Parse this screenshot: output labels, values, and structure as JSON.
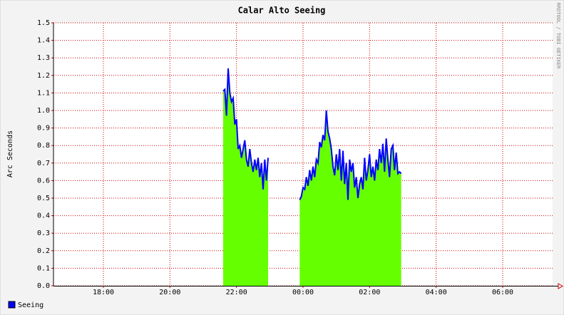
{
  "chart_data": {
    "type": "area",
    "title": "Calar Alto Seeing",
    "y_label": "Arc Seconds",
    "side_note": "RRDTOOL / TOBI OETIKER",
    "xlim": [
      16.5,
      31.5
    ],
    "xticks": [
      {
        "value": 18,
        "label": "18:00"
      },
      {
        "value": 20,
        "label": "20:00"
      },
      {
        "value": 22,
        "label": "22:00"
      },
      {
        "value": 24,
        "label": "00:00"
      },
      {
        "value": 26,
        "label": "02:00"
      },
      {
        "value": 28,
        "label": "04:00"
      },
      {
        "value": 30,
        "label": "06:00"
      }
    ],
    "ylim": [
      0,
      1.5
    ],
    "yticks": [
      {
        "value": 0,
        "label": "0.0"
      },
      0.1,
      0.2,
      0.3,
      0.4,
      0.5,
      0.6,
      0.7,
      0.8,
      0.9,
      {
        "value": 1,
        "label": "1.0"
      },
      1.1,
      1.2,
      1.3,
      1.4,
      1.5
    ],
    "grid": true,
    "series": [
      {
        "name": "Seeing",
        "color": "#0000ff",
        "fill": "#66ff00",
        "x": [
          21.6,
          21.65,
          21.7,
          21.75,
          21.8,
          21.85,
          21.9,
          21.95,
          22.0,
          22.05,
          22.1,
          22.15,
          22.2,
          22.25,
          22.3,
          22.35,
          22.4,
          22.45,
          22.5,
          22.55,
          22.6,
          22.65,
          22.7,
          22.75,
          22.8,
          22.85,
          22.9,
          22.95,
          23.4,
          23.9,
          23.95,
          24.0,
          24.05,
          24.1,
          24.15,
          24.2,
          24.25,
          24.3,
          24.35,
          24.4,
          24.45,
          24.5,
          24.55,
          24.6,
          24.65,
          24.7,
          24.75,
          24.8,
          24.85,
          24.9,
          24.95,
          25.0,
          25.05,
          25.1,
          25.15,
          25.2,
          25.25,
          25.3,
          25.35,
          25.4,
          25.45,
          25.5,
          25.55,
          25.6,
          25.65,
          25.7,
          25.75,
          25.8,
          25.85,
          25.9,
          25.95,
          26.0,
          26.05,
          26.1,
          26.15,
          26.2,
          26.25,
          26.3,
          26.35,
          26.4,
          26.45,
          26.5,
          26.55,
          26.6,
          26.65,
          26.7,
          26.75,
          26.8,
          26.85,
          26.9,
          26.95
        ],
        "values": [
          1.11,
          1.12,
          0.97,
          1.24,
          1.1,
          1.05,
          1.07,
          0.92,
          0.95,
          0.78,
          0.8,
          0.73,
          0.78,
          0.83,
          0.72,
          0.68,
          0.78,
          0.7,
          0.65,
          0.72,
          0.66,
          0.73,
          0.62,
          0.7,
          0.55,
          0.72,
          0.6,
          0.73,
          null,
          0.49,
          0.51,
          0.56,
          0.55,
          0.62,
          0.57,
          0.66,
          0.6,
          0.68,
          0.62,
          0.72,
          0.7,
          0.82,
          0.79,
          0.86,
          0.83,
          1.0,
          0.88,
          0.84,
          0.78,
          0.68,
          0.63,
          0.75,
          0.66,
          0.78,
          0.6,
          0.77,
          0.58,
          0.7,
          0.49,
          0.72,
          0.65,
          0.7,
          0.56,
          0.62,
          0.5,
          0.58,
          0.62,
          0.55,
          0.73,
          0.6,
          0.66,
          0.75,
          0.62,
          0.68,
          0.6,
          0.72,
          0.66,
          0.78,
          0.7,
          0.81,
          0.65,
          0.84,
          0.72,
          0.62,
          0.78,
          0.8,
          0.66,
          0.76,
          0.64,
          0.65,
          0.64
        ]
      }
    ]
  }
}
